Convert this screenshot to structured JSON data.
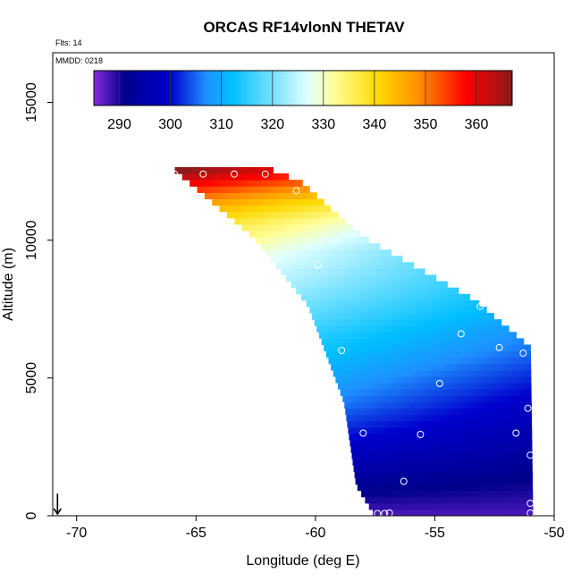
{
  "chart_data": {
    "type": "heatmap",
    "title": "ORCAS RF14vlonN THETAV",
    "flights_label": "Flts: 14",
    "date_label": "MMDD: 0218",
    "xlabel": "Longitude (deg E)",
    "ylabel": "Altitude (m)",
    "xlim": [
      -71,
      -50
    ],
    "ylim": [
      0,
      16800
    ],
    "x_ticks": [
      -70,
      -65,
      -60,
      -55,
      -50
    ],
    "y_ticks": [
      0,
      5000,
      10000,
      15000
    ],
    "color_scale": {
      "range": [
        285,
        367
      ],
      "tick_values": [
        290,
        300,
        310,
        320,
        330,
        340,
        350,
        360
      ],
      "colors": [
        "#8a2be2",
        "#00008b",
        "#0000cd",
        "#1e90ff",
        "#00bfff",
        "#e0ffff",
        "#ffff99",
        "#ffd700",
        "#ff8c00",
        "#ff0000",
        "#8b1a1a"
      ],
      "color_positions": [
        285,
        291,
        300,
        307,
        312,
        327,
        332,
        341,
        349,
        358,
        367
      ]
    },
    "arrow": {
      "x": -70.8,
      "y_start": 800,
      "y_end": 0
    },
    "field_model": {
      "lon_west_edge": [
        [
          0,
          -57.6
        ],
        [
          1000,
          -58.3
        ],
        [
          4000,
          -58.8
        ],
        [
          7500,
          -60.3
        ],
        [
          10000,
          -62.6
        ],
        [
          12500,
          -66
        ]
      ],
      "lon_east_edge": [
        [
          0,
          -50.9
        ],
        [
          6000,
          -51
        ],
        [
          7700,
          -53.3
        ],
        [
          10000,
          -58
        ],
        [
          12000,
          -60.6
        ],
        [
          12500,
          -62
        ]
      ],
      "theta_profile": [
        [
          0,
          288
        ],
        [
          1200,
          292
        ],
        [
          2500,
          297
        ],
        [
          4500,
          304
        ],
        [
          6500,
          311
        ],
        [
          8000,
          318
        ],
        [
          9500,
          325
        ],
        [
          10500,
          333
        ],
        [
          11200,
          342
        ],
        [
          11800,
          352
        ],
        [
          12500,
          365
        ]
      ],
      "east_west_gradient": 0.9
    },
    "sample_points": [
      {
        "lon": -65.9,
        "alt": 12400
      },
      {
        "lon": -64.7,
        "alt": 12400
      },
      {
        "lon": -63.4,
        "alt": 12400
      },
      {
        "lon": -62.1,
        "alt": 12400
      },
      {
        "lon": -60.8,
        "alt": 11800
      },
      {
        "lon": -59.9,
        "alt": 9100
      },
      {
        "lon": -53.1,
        "alt": 7600
      },
      {
        "lon": -53.9,
        "alt": 6600
      },
      {
        "lon": -52.3,
        "alt": 6100
      },
      {
        "lon": -51.3,
        "alt": 5900
      },
      {
        "lon": -58.9,
        "alt": 6000
      },
      {
        "lon": -54.8,
        "alt": 4800
      },
      {
        "lon": -51.1,
        "alt": 3900
      },
      {
        "lon": -51.6,
        "alt": 3000
      },
      {
        "lon": -58.0,
        "alt": 3000
      },
      {
        "lon": -55.6,
        "alt": 2950
      },
      {
        "lon": -51.0,
        "alt": 2200
      },
      {
        "lon": -56.3,
        "alt": 1250
      },
      {
        "lon": -51.0,
        "alt": 450
      },
      {
        "lon": -57.4,
        "alt": 80
      },
      {
        "lon": -57.1,
        "alt": 80
      },
      {
        "lon": -56.9,
        "alt": 100
      },
      {
        "lon": -51.0,
        "alt": 100
      }
    ]
  }
}
